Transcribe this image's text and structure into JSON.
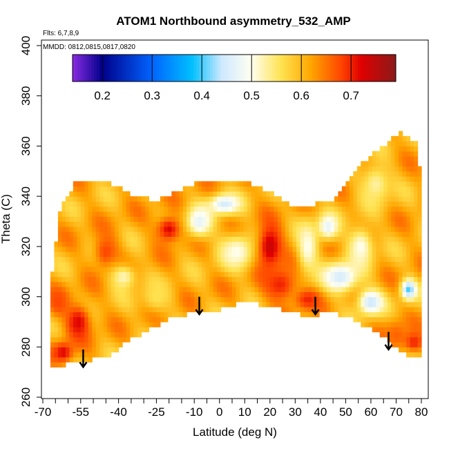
{
  "chart_data": {
    "type": "heatmap",
    "title": "ATOM1 Northbound asymmetry_532_AMP",
    "annotations": {
      "flights": "Flts: 6,7,8,9",
      "dates": "MMDD: 0812,0815,0817,0820"
    },
    "xlabel": "Latitude (deg N)",
    "ylabel": "Theta (C)",
    "xlim": [
      -70,
      80
    ],
    "ylim": [
      260,
      400
    ],
    "x_ticks": [
      "-70",
      "-55",
      "-40",
      "-25",
      "-10",
      "0",
      "10",
      "20",
      "30",
      "40",
      "50",
      "60",
      "70",
      "80"
    ],
    "x_tick_values": [
      -70,
      -55,
      -40,
      -25,
      -10,
      0,
      10,
      20,
      30,
      40,
      50,
      60,
      70,
      80
    ],
    "y_ticks": [
      "260",
      "280",
      "300",
      "320",
      "340",
      "360",
      "380",
      "400"
    ],
    "y_tick_values": [
      260,
      280,
      300,
      320,
      340,
      360,
      380,
      400
    ],
    "colorbar": {
      "range": [
        0.14,
        0.79
      ],
      "ticks": [
        "0.2",
        "0.3",
        "0.4",
        "0.5",
        "0.6",
        "0.7"
      ],
      "tick_values": [
        0.2,
        0.3,
        0.4,
        0.5,
        0.6,
        0.7
      ],
      "color_stops": [
        {
          "v": 0.14,
          "color": "#8a2be2"
        },
        {
          "v": 0.2,
          "color": "#00008b"
        },
        {
          "v": 0.3,
          "color": "#0064ff"
        },
        {
          "v": 0.38,
          "color": "#00bfff"
        },
        {
          "v": 0.44,
          "color": "#cfe9ff"
        },
        {
          "v": 0.5,
          "color": "#fffff0"
        },
        {
          "v": 0.56,
          "color": "#ffe250"
        },
        {
          "v": 0.62,
          "color": "#ffa500"
        },
        {
          "v": 0.68,
          "color": "#ff4500"
        },
        {
          "v": 0.72,
          "color": "#e00000"
        },
        {
          "v": 0.79,
          "color": "#8b1a1a"
        }
      ]
    },
    "boundary": {
      "top": [
        [
          -67,
          304
        ],
        [
          -63,
          336
        ],
        [
          -56,
          347
        ],
        [
          -45,
          346
        ],
        [
          -35,
          341
        ],
        [
          -25,
          338
        ],
        [
          -10,
          345
        ],
        [
          0,
          347
        ],
        [
          10,
          346
        ],
        [
          20,
          342
        ],
        [
          30,
          335
        ],
        [
          45,
          339
        ],
        [
          55,
          352
        ],
        [
          65,
          360
        ],
        [
          72,
          366
        ],
        [
          78,
          361
        ],
        [
          80,
          348
        ]
      ],
      "bottom": [
        [
          80,
          276
        ],
        [
          75,
          276
        ],
        [
          65,
          284
        ],
        [
          55,
          290
        ],
        [
          45,
          294
        ],
        [
          40,
          293
        ],
        [
          32,
          293
        ],
        [
          20,
          296
        ],
        [
          10,
          298
        ],
        [
          0,
          295
        ],
        [
          -10,
          294
        ],
        [
          -20,
          291
        ],
        [
          -35,
          283
        ],
        [
          -45,
          276
        ],
        [
          -55,
          274
        ],
        [
          -67,
          272
        ]
      ]
    },
    "base_value": 0.61,
    "features": [
      {
        "x": -56,
        "y": 290,
        "sx": 5,
        "sy": 7,
        "v": 0.72
      },
      {
        "x": -62,
        "y": 278,
        "sx": 4,
        "sy": 4,
        "v": 0.72
      },
      {
        "x": -64,
        "y": 298,
        "sx": 4,
        "sy": 6,
        "v": 0.68
      },
      {
        "x": -45,
        "y": 318,
        "sx": 5,
        "sy": 7,
        "v": 0.68
      },
      {
        "x": -38,
        "y": 308,
        "sx": 5,
        "sy": 5,
        "v": 0.52
      },
      {
        "x": -25,
        "y": 300,
        "sx": 6,
        "sy": 6,
        "v": 0.56
      },
      {
        "x": -20,
        "y": 327,
        "sx": 5,
        "sy": 5,
        "v": 0.72
      },
      {
        "x": -8,
        "y": 330,
        "sx": 5,
        "sy": 6,
        "v": 0.47
      },
      {
        "x": 2,
        "y": 337,
        "sx": 6,
        "sy": 4,
        "v": 0.45
      },
      {
        "x": 7,
        "y": 318,
        "sx": 7,
        "sy": 7,
        "v": 0.5
      },
      {
        "x": 20,
        "y": 320,
        "sx": 5,
        "sy": 9,
        "v": 0.74
      },
      {
        "x": 24,
        "y": 305,
        "sx": 7,
        "sy": 7,
        "v": 0.7
      },
      {
        "x": 35,
        "y": 320,
        "sx": 4,
        "sy": 10,
        "v": 0.5
      },
      {
        "x": 43,
        "y": 328,
        "sx": 4,
        "sy": 5,
        "v": 0.47
      },
      {
        "x": 48,
        "y": 308,
        "sx": 7,
        "sy": 6,
        "v": 0.45
      },
      {
        "x": 56,
        "y": 320,
        "sx": 5,
        "sy": 8,
        "v": 0.5
      },
      {
        "x": 62,
        "y": 345,
        "sx": 6,
        "sy": 8,
        "v": 0.53
      },
      {
        "x": 60,
        "y": 298,
        "sx": 5,
        "sy": 5,
        "v": 0.44
      },
      {
        "x": 75,
        "y": 303,
        "sx": 3,
        "sy": 4,
        "v": 0.4
      },
      {
        "x": 70,
        "y": 285,
        "sx": 5,
        "sy": 6,
        "v": 0.66
      },
      {
        "x": 77,
        "y": 282,
        "sx": 4,
        "sy": 4,
        "v": 0.7
      },
      {
        "x": 35,
        "y": 299,
        "sx": 5,
        "sy": 4,
        "v": 0.7
      }
    ],
    "arrows": [
      {
        "x": -54,
        "y_top": 279,
        "y_bottom": 272
      },
      {
        "x": -8,
        "y_top": 300,
        "y_bottom": 293
      },
      {
        "x": 38,
        "y_top": 300,
        "y_bottom": 293
      },
      {
        "x": 67,
        "y_top": 286,
        "y_bottom": 279
      }
    ],
    "grid": false,
    "legend": "top colorbar"
  }
}
